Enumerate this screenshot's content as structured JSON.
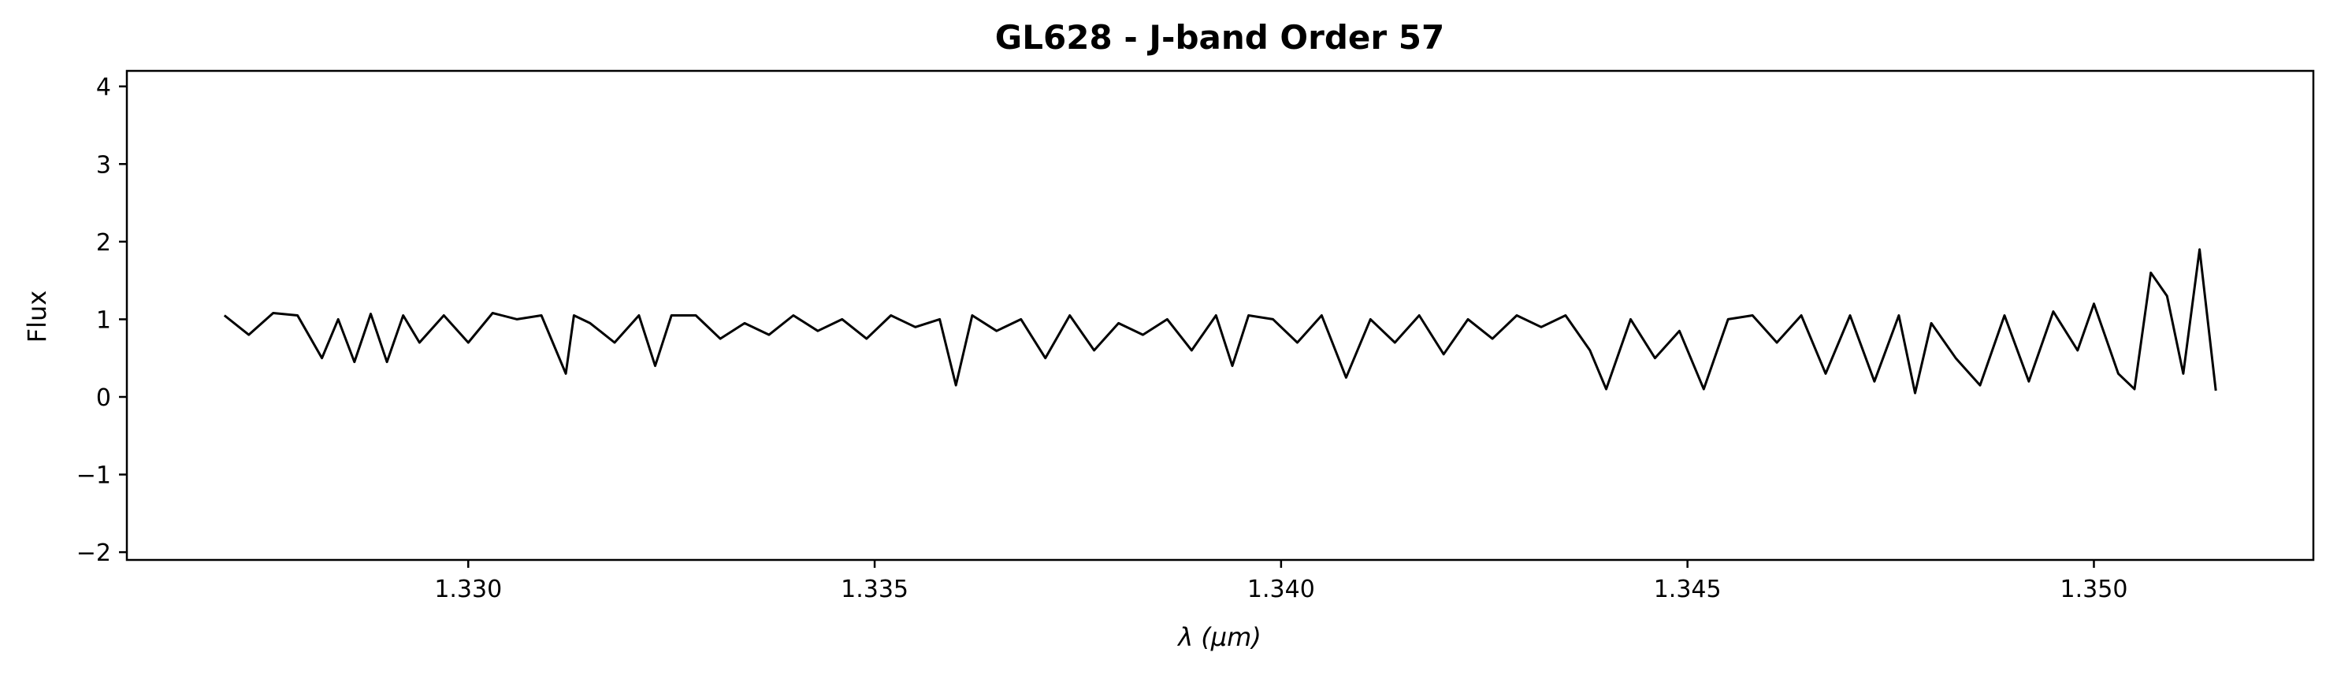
{
  "chart_data": {
    "type": "line",
    "title": "GL628 - J-band Order 57",
    "xlabel": "λ (μm)",
    "ylabel": "Flux",
    "xlim": [
      1.3258,
      1.3527
    ],
    "ylim": [
      -2.1,
      4.2
    ],
    "xticks": [
      1.33,
      1.335,
      1.34,
      1.345,
      1.35
    ],
    "xtick_labels": [
      "1.330",
      "1.335",
      "1.340",
      "1.345",
      "1.350"
    ],
    "yticks": [
      -2,
      -1,
      0,
      1,
      2,
      3,
      4
    ],
    "ytick_labels": [
      "−2",
      "−1",
      "0",
      "1",
      "2",
      "3",
      "4"
    ],
    "grid": false,
    "line_color": "#000000",
    "series": [
      {
        "x": [
          1.327,
          1.3273,
          1.3276,
          1.3279,
          1.3282,
          1.3284,
          1.3286,
          1.3288,
          1.329,
          1.3292,
          1.3294,
          1.3297,
          1.33,
          1.3303,
          1.3306,
          1.3309,
          1.3312,
          1.3313,
          1.3315,
          1.3318,
          1.3321,
          1.3323,
          1.3325,
          1.3328,
          1.3331,
          1.3334,
          1.3337,
          1.334,
          1.3343,
          1.3346,
          1.3349,
          1.3352,
          1.3355,
          1.3358,
          1.336,
          1.3362,
          1.3365,
          1.3368,
          1.3371,
          1.3374,
          1.3377,
          1.338,
          1.3383,
          1.3386,
          1.3389,
          1.3392,
          1.3394,
          1.3396,
          1.3399,
          1.3402,
          1.3405,
          1.3408,
          1.3411,
          1.3414,
          1.3417,
          1.342,
          1.3423,
          1.3426,
          1.3429,
          1.3432,
          1.3435,
          1.3438,
          1.344,
          1.3443,
          1.3446,
          1.3449,
          1.3452,
          1.3455,
          1.3458,
          1.3461,
          1.3464,
          1.3467,
          1.347,
          1.3473,
          1.3476,
          1.3478,
          1.348,
          1.3483,
          1.3486,
          1.3489,
          1.3492,
          1.3495,
          1.3498,
          1.35,
          1.3503,
          1.3505,
          1.3507,
          1.3509,
          1.3511,
          1.3513,
          1.3515
        ],
        "y": [
          1.05,
          0.8,
          1.08,
          1.05,
          0.5,
          1.0,
          0.45,
          1.07,
          0.45,
          1.05,
          0.7,
          1.05,
          0.7,
          1.08,
          1.0,
          1.05,
          0.3,
          1.05,
          0.95,
          0.7,
          1.05,
          0.4,
          1.05,
          1.05,
          0.75,
          0.95,
          0.8,
          1.05,
          0.85,
          1.0,
          0.75,
          1.05,
          0.9,
          1.0,
          0.15,
          1.05,
          0.85,
          1.0,
          0.5,
          1.05,
          0.6,
          0.95,
          0.8,
          1.0,
          0.6,
          1.05,
          0.4,
          1.05,
          1.0,
          0.7,
          1.05,
          0.25,
          1.0,
          0.7,
          1.05,
          0.55,
          1.0,
          0.75,
          1.05,
          0.9,
          1.05,
          0.6,
          0.1,
          1.0,
          0.5,
          0.85,
          0.1,
          1.0,
          1.05,
          0.7,
          1.05,
          0.3,
          1.05,
          0.2,
          1.05,
          0.05,
          0.95,
          0.5,
          0.15,
          1.05,
          0.2,
          1.1,
          0.6,
          1.2,
          0.3,
          0.1,
          1.6,
          1.3,
          0.3,
          1.9,
          0.08
        ]
      }
    ]
  }
}
